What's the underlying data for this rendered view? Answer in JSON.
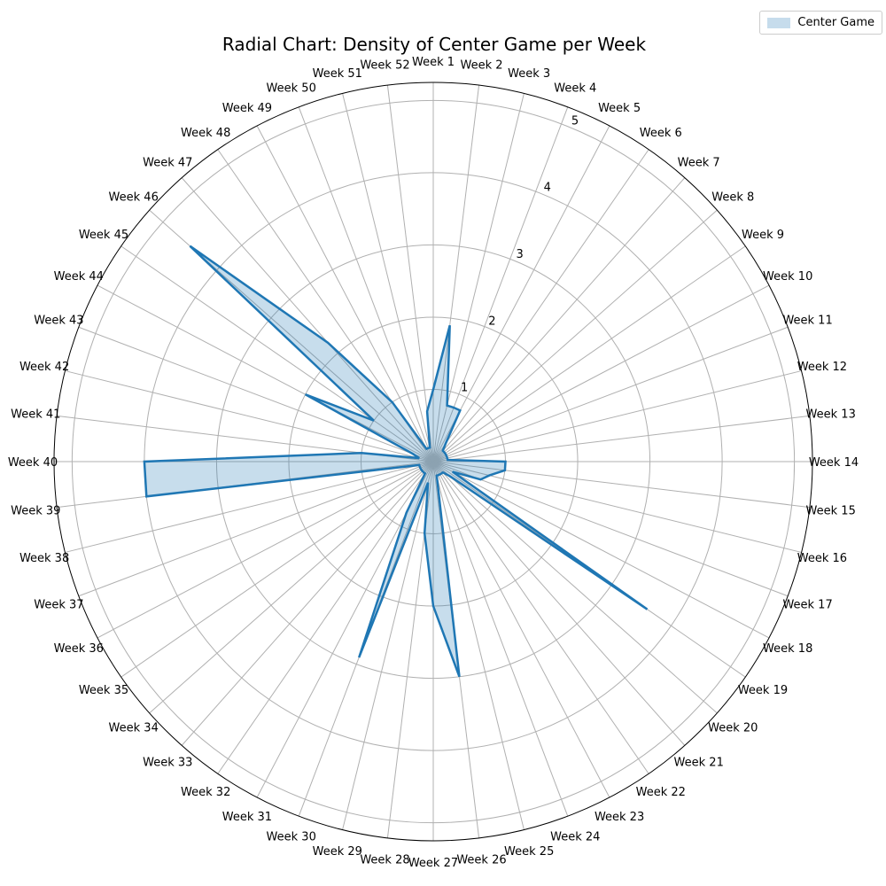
{
  "chart_data": {
    "type": "radar",
    "title": "Radial Chart: Density of Center Game per Week",
    "categories": [
      "Week 1",
      "Week 2",
      "Week 3",
      "Week 4",
      "Week 5",
      "Week 6",
      "Week 7",
      "Week 8",
      "Week 9",
      "Week 10",
      "Week 11",
      "Week 12",
      "Week 13",
      "Week 14",
      "Week 15",
      "Week 16",
      "Week 17",
      "Week 18",
      "Week 19",
      "Week 20",
      "Week 21",
      "Week 22",
      "Week 23",
      "Week 24",
      "Week 25",
      "Week 26",
      "Week 27",
      "Week 28",
      "Week 29",
      "Week 30",
      "Week 31",
      "Week 32",
      "Week 33",
      "Week 34",
      "Week 35",
      "Week 36",
      "Week 37",
      "Week 38",
      "Week 39",
      "Week 40",
      "Week 41",
      "Week 42",
      "Week 43",
      "Week 44",
      "Week 45",
      "Week 46",
      "Week 47",
      "Week 48",
      "Week 49",
      "Week 50",
      "Week 51",
      "Week 52"
    ],
    "series": [
      {
        "name": "Center Game",
        "values": [
          1.0,
          1.9,
          0.8,
          0.8,
          0.8,
          0.3,
          0.2,
          0.2,
          0.2,
          0.2,
          0.2,
          0.2,
          0.2,
          1.0,
          1.0,
          0.8,
          0.7,
          0.3,
          3.6,
          0.3,
          0.2,
          0.2,
          0.2,
          0.2,
          0.2,
          3.0,
          2.0,
          1.0,
          0.3,
          2.9,
          0.8,
          0.2,
          0.2,
          0.2,
          0.2,
          0.2,
          0.2,
          0.2,
          4.0,
          4.0,
          1.0,
          0.2,
          0.3,
          2.0,
          1.0,
          4.5,
          2.2,
          1.0,
          0.2,
          0.2,
          0.2,
          0.7
        ]
      }
    ],
    "radial_ticks": [
      1,
      2,
      3,
      4,
      5
    ],
    "rmax": 5.25,
    "grid": true,
    "legend_position": "top-right",
    "colors": {
      "line": "#1f77b4",
      "fill": "#c6dcec",
      "grid": "#b0b0b0",
      "frame": "#000000"
    }
  }
}
